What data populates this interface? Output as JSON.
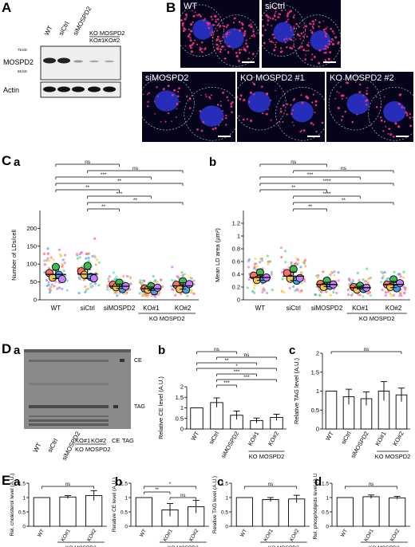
{
  "panels": {
    "A": "A",
    "B": "B",
    "C": "C",
    "Ca": "a",
    "Cb": "b",
    "D": "D",
    "Da": "a",
    "Db": "b",
    "Dc": "c",
    "E": "E",
    "Ea": "a",
    "Eb": "b",
    "Ec": "c",
    "Ed": "d"
  },
  "western": {
    "lanes": [
      "WT",
      "siCtrl",
      "siMOSPD2",
      "KO#1",
      "KO#2"
    ],
    "ko_header": "KO MOSPD2",
    "rows": [
      "MOSPD2",
      "Actin"
    ],
    "markers": [
      "75 kD",
      "55 kD"
    ]
  },
  "micrographs": [
    "WT",
    "siCtrl",
    "siMOSPD2",
    "KO MOSPD2 #1",
    "KO MOSPD2 #2"
  ],
  "groups": [
    "WT",
    "siCtrl",
    "siMOSPD2",
    "KO#1",
    "KO#2"
  ],
  "ko_label": "KO MOSPD2",
  "tlc": {
    "lanes": [
      "WT",
      "siCtrl",
      "siMOSPD2",
      "KO#1",
      "KO#2",
      "CE",
      "TAG"
    ],
    "bands": [
      "CE",
      "TAG"
    ]
  },
  "chart_data": [
    {
      "type": "scatter",
      "id": "Ca",
      "ylabel": "Number of LDs/cell",
      "ylim": [
        0,
        250
      ],
      "yticks": [
        0,
        50,
        100,
        150,
        200
      ],
      "categories": [
        "WT",
        "siCtrl",
        "siMOSPD2",
        "KO#1",
        "KO#2"
      ],
      "means": [
        71,
        72,
        38,
        31,
        39
      ],
      "replicates": [
        [
          75,
          62,
          92,
          70,
          58
        ],
        [
          80,
          70,
          95,
          64,
          60
        ],
        [
          42,
          35,
          48,
          30,
          38
        ],
        [
          32,
          28,
          38,
          24,
          34
        ],
        [
          42,
          30,
          52,
          28,
          44
        ]
      ],
      "sig": [
        [
          "ns",
          0,
          2
        ],
        [
          "ns",
          1,
          4
        ],
        [
          "***",
          0,
          3
        ],
        [
          "**",
          0,
          4
        ],
        [
          "**",
          0,
          2
        ],
        [
          "***",
          1,
          3
        ],
        [
          "**",
          1,
          4
        ],
        [
          "**",
          1,
          2
        ]
      ]
    },
    {
      "type": "scatter",
      "id": "Cb",
      "ylabel": "Mean LD area (µm²)",
      "ylim": [
        0,
        1.4
      ],
      "yticks": [
        0,
        0.2,
        0.4,
        0.6,
        0.8,
        1.0,
        1.2
      ],
      "categories": [
        "WT",
        "siCtrl",
        "siMOSPD2",
        "KO#1",
        "KO#2"
      ],
      "means": [
        0.35,
        0.37,
        0.24,
        0.19,
        0.24
      ],
      "replicates": [
        [
          0.38,
          0.31,
          0.43,
          0.32,
          0.35
        ],
        [
          0.42,
          0.33,
          0.48,
          0.3,
          0.34
        ],
        [
          0.25,
          0.2,
          0.3,
          0.22,
          0.24
        ],
        [
          0.2,
          0.16,
          0.22,
          0.17,
          0.19
        ],
        [
          0.24,
          0.2,
          0.32,
          0.18,
          0.26
        ]
      ],
      "sig": [
        [
          "ns",
          0,
          2
        ],
        [
          "ns",
          1,
          4
        ],
        [
          "***",
          0,
          3
        ],
        [
          "****",
          0,
          4
        ],
        [
          "**",
          0,
          2
        ],
        [
          "****",
          1,
          3
        ],
        [
          "**",
          1,
          4
        ],
        [
          "**",
          1,
          2
        ]
      ]
    },
    {
      "type": "bar",
      "id": "Db",
      "ylabel": "Relative CE level (A.U.)",
      "ylim": [
        0,
        2
      ],
      "yticks": [
        0,
        0.5,
        1.0,
        1.5,
        2.0
      ],
      "categories": [
        "WT",
        "siCtrl",
        "siMOSPD2",
        "KO#1",
        "KO#2"
      ],
      "values": [
        1.0,
        1.25,
        0.65,
        0.4,
        0.55
      ],
      "errors": [
        0,
        0.22,
        0.2,
        0.12,
        0.15
      ],
      "sig": [
        [
          "ns",
          0,
          2
        ],
        [
          "ns",
          1,
          4
        ],
        [
          "**",
          0,
          3
        ],
        [
          "*",
          0,
          4
        ],
        [
          "***",
          1,
          3
        ],
        [
          "***",
          1,
          4
        ],
        [
          "***",
          1,
          2
        ]
      ]
    },
    {
      "type": "bar",
      "id": "Dc",
      "ylabel": "Relative TAG level (A.U.)",
      "ylim": [
        0,
        2
      ],
      "yticks": [
        0,
        0.5,
        1.0,
        1.5,
        2.0
      ],
      "categories": [
        "WT",
        "siCtrl",
        "siMOSPD2",
        "KO#1",
        "KO#2"
      ],
      "values": [
        1.0,
        0.85,
        0.8,
        1.0,
        0.9
      ],
      "errors": [
        0,
        0.2,
        0.18,
        0.25,
        0.18
      ],
      "sig": [
        [
          "ns",
          0,
          4
        ]
      ]
    },
    {
      "type": "bar",
      "id": "Ea",
      "ylabel": "Rel. cholesterol level (A.U.)",
      "ylim": [
        0,
        1.5
      ],
      "yticks": [
        0,
        0.5,
        1.0,
        1.5
      ],
      "categories": [
        "WT",
        "KO#1",
        "KO#2"
      ],
      "values": [
        1.0,
        1.02,
        1.07
      ],
      "errors": [
        0,
        0.05,
        0.17
      ],
      "sig": [
        [
          "ns",
          0,
          2
        ]
      ]
    },
    {
      "type": "bar",
      "id": "Eb",
      "ylabel": "Relative CE level (A.U.)",
      "ylim": [
        0,
        1.5
      ],
      "yticks": [
        0,
        0.5,
        1.0,
        1.5
      ],
      "categories": [
        "WT",
        "KO#1",
        "KO#2"
      ],
      "values": [
        1.0,
        0.57,
        0.68
      ],
      "errors": [
        0,
        0.22,
        0.22
      ],
      "sig": [
        [
          "*",
          0,
          2
        ],
        [
          "**",
          0,
          1
        ],
        [
          "ns",
          1,
          2
        ]
      ]
    },
    {
      "type": "bar",
      "id": "Ec",
      "ylabel": "Relative TAG level (A.U.)",
      "ylim": [
        0,
        1.5
      ],
      "yticks": [
        0,
        0.5,
        1.0,
        1.5
      ],
      "categories": [
        "WT",
        "KO#1",
        "KO#2"
      ],
      "values": [
        1.0,
        0.93,
        0.95
      ],
      "errors": [
        0,
        0.07,
        0.13
      ],
      "sig": [
        [
          "ns",
          0,
          2
        ]
      ]
    },
    {
      "type": "bar",
      "id": "Ed",
      "ylabel": "Rel. phospholipids level (A.U.)",
      "ylim": [
        0,
        1.5
      ],
      "yticks": [
        0,
        0.5,
        1.0,
        1.5
      ],
      "categories": [
        "WT",
        "KO#1",
        "KO#2"
      ],
      "values": [
        1.0,
        1.03,
        0.99
      ],
      "errors": [
        0,
        0.06,
        0.05
      ],
      "sig": [
        [
          "ns",
          0,
          2
        ]
      ]
    }
  ],
  "colors": {
    "dots": [
      "#ff6b6b",
      "#ffa94d",
      "#69db7c",
      "#4dabf7",
      "#da77f2",
      "#ffd43b",
      "#63e6be",
      "#f783ac"
    ],
    "big": [
      "#ff6f61",
      "#f4c542",
      "#3fb950",
      "#48a1e6",
      "#c77dff"
    ],
    "nucleus": "#2b35d6",
    "ld": "#e0307f"
  }
}
